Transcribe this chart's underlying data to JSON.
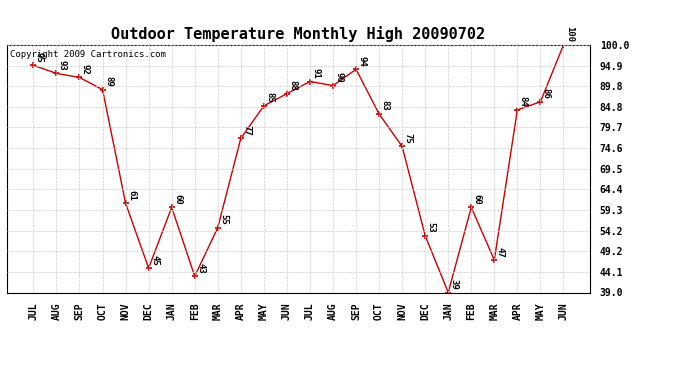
{
  "title": "Outdoor Temperature Monthly High 20090702",
  "copyright": "Copyright 2009 Cartronics.com",
  "months": [
    "JUL",
    "AUG",
    "SEP",
    "OCT",
    "NOV",
    "DEC",
    "JAN",
    "FEB",
    "MAR",
    "APR",
    "MAY",
    "JUN",
    "JUL",
    "AUG",
    "SEP",
    "OCT",
    "NOV",
    "DEC",
    "JAN",
    "FEB",
    "MAR",
    "APR",
    "MAY",
    "JUN"
  ],
  "values": [
    95,
    93,
    92,
    89,
    61,
    45,
    60,
    43,
    55,
    77,
    85,
    88,
    91,
    90,
    94,
    83,
    75,
    53,
    39,
    60,
    47,
    84,
    86,
    100
  ],
  "line_color": "#cc0000",
  "marker": "+",
  "marker_color": "#cc0000",
  "bg_color": "#ffffff",
  "grid_color": "#cccccc",
  "ylim_min": 39.0,
  "ylim_max": 100.0,
  "yticks": [
    39.0,
    44.1,
    49.2,
    54.2,
    59.3,
    64.4,
    69.5,
    74.6,
    79.7,
    84.8,
    89.8,
    94.9,
    100.0
  ],
  "title_fontsize": 11,
  "label_fontsize": 6.5,
  "tick_fontsize": 7,
  "copyright_fontsize": 6.5
}
